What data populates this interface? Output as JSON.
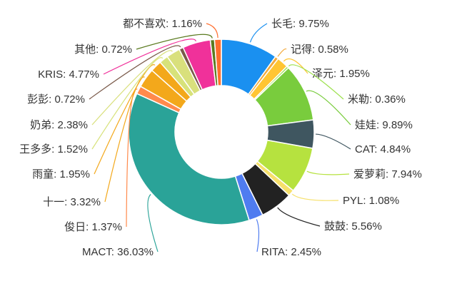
{
  "chart_data": {
    "type": "pie",
    "variant": "donut",
    "slices": [
      {
        "label": "长毛",
        "value": 9.75,
        "text": "长毛: 9.75%",
        "color": "#1a90f0"
      },
      {
        "label": "记得",
        "value": 0.58,
        "text": "记得: 0.58%",
        "color": "#f2a93b"
      },
      {
        "label": "泽元",
        "value": 1.95,
        "text": "泽元: 1.95%",
        "color": "#ffc533"
      },
      {
        "label": "米勒",
        "value": 0.36,
        "text": "米勒: 0.36%",
        "color": "#9be04a"
      },
      {
        "label": "娃娃",
        "value": 9.89,
        "text": "娃娃: 9.89%",
        "color": "#79cc3d"
      },
      {
        "label": "CAT",
        "value": 4.84,
        "text": "CAT: 4.84%",
        "color": "#3f5660"
      },
      {
        "label": "爱萝莉",
        "value": 7.94,
        "text": "爱萝莉: 7.94%",
        "color": "#b6e23f"
      },
      {
        "label": "PYL",
        "value": 1.08,
        "text": "PYL: 1.08%",
        "color": "#f6e06b"
      },
      {
        "label": "鼓鼓",
        "value": 5.56,
        "text": "鼓鼓: 5.56%",
        "color": "#222222"
      },
      {
        "label": "RITA",
        "value": 2.45,
        "text": "RITA: 2.45%",
        "color": "#4f7cf0"
      },
      {
        "label": "MACT",
        "value": 36.03,
        "text": "MACT: 36.03%",
        "color": "#2aa398"
      },
      {
        "label": "俊日",
        "value": 1.37,
        "text": "俊日: 1.37%",
        "color": "#ff8a4c"
      },
      {
        "label": "十一",
        "value": 3.32,
        "text": "十一: 3.32%",
        "color": "#f3a81b"
      },
      {
        "label": "雨童",
        "value": 1.95,
        "text": "雨童: 1.95%",
        "color": "#f3a81b"
      },
      {
        "label": "王多多",
        "value": 1.52,
        "text": "王多多: 1.52%",
        "color": "#d7e27a"
      },
      {
        "label": "奶弟",
        "value": 2.38,
        "text": "奶弟: 2.38%",
        "color": "#d9e07c"
      },
      {
        "label": "彭彭",
        "value": 0.72,
        "text": "彭彭: 0.72%",
        "color": "#7a5a4a"
      },
      {
        "label": "KRIS",
        "value": 4.77,
        "text": "KRIS: 4.77%",
        "color": "#f0319a"
      },
      {
        "label": "其他",
        "value": 0.72,
        "text": "其他: 0.72%",
        "color": "#5a7a1f"
      },
      {
        "label": "都不喜欢",
        "value": 1.16,
        "text": "都不喜欢: 1.16%",
        "color": "#ff6e2e"
      }
    ]
  }
}
